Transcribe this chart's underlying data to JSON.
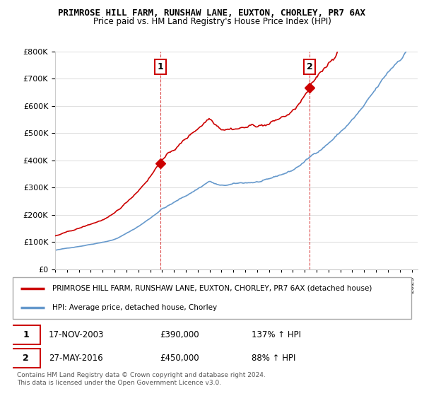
{
  "title1": "PRIMROSE HILL FARM, RUNSHAW LANE, EUXTON, CHORLEY, PR7 6AX",
  "title2": "Price paid vs. HM Land Registry's House Price Index (HPI)",
  "ylim": [
    0,
    800000
  ],
  "yticks": [
    0,
    100000,
    200000,
    300000,
    400000,
    500000,
    600000,
    700000,
    800000
  ],
  "sale1_date": 2003.88,
  "sale1_price": 390000,
  "sale1_label": "1",
  "sale2_date": 2016.4,
  "sale2_price": 450000,
  "sale2_label": "2",
  "red_line_color": "#cc0000",
  "blue_line_color": "#6699cc",
  "marker_color": "#cc0000",
  "vline_color": "#cc0000",
  "legend_label_red": "PRIMROSE HILL FARM, RUNSHAW LANE, EUXTON, CHORLEY, PR7 6AX (detached house)",
  "legend_label_blue": "HPI: Average price, detached house, Chorley",
  "table_row1": [
    "1",
    "17-NOV-2003",
    "£390,000",
    "137% ↑ HPI"
  ],
  "table_row2": [
    "2",
    "27-MAY-2016",
    "£450,000",
    "88% ↑ HPI"
  ],
  "footnote": "Contains HM Land Registry data © Crown copyright and database right 2024.\nThis data is licensed under the Open Government Licence v3.0.",
  "background_color": "#ffffff",
  "grid_color": "#e0e0e0",
  "start_year": 1995,
  "end_year": 2025,
  "num_points": 366
}
